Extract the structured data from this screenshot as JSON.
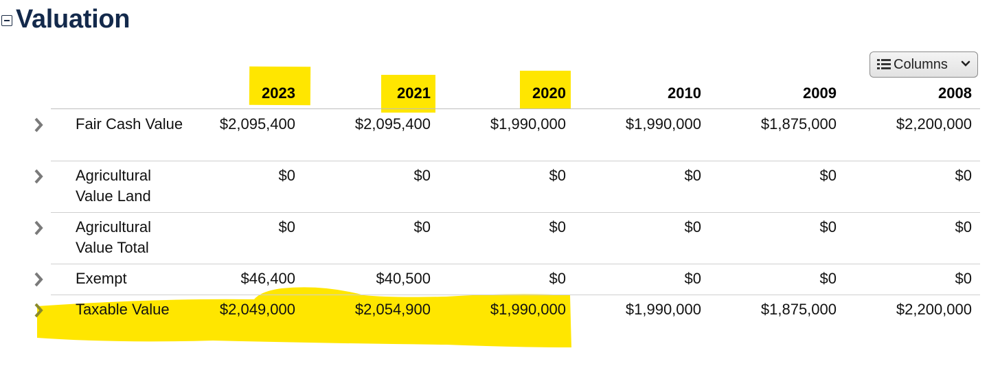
{
  "section": {
    "title": "Valuation"
  },
  "columns_button": {
    "label": "Columns"
  },
  "colors": {
    "highlight": "#ffe600",
    "title": "#13294b"
  },
  "table": {
    "years": [
      "2023",
      "2021",
      "2020",
      "2010",
      "2009",
      "2008"
    ],
    "highlighted_years": [
      "2023",
      "2021",
      "2020"
    ],
    "rows": [
      {
        "label": "Fair Cash Value",
        "values": [
          "$2,095,400",
          "$2,095,400",
          "$1,990,000",
          "$1,990,000",
          "$1,875,000",
          "$2,200,000"
        ]
      },
      {
        "label": "Agricultural Value Land",
        "values": [
          "$0",
          "$0",
          "$0",
          "$0",
          "$0",
          "$0"
        ]
      },
      {
        "label": "Agricultural Value Total",
        "values": [
          "$0",
          "$0",
          "$0",
          "$0",
          "$0",
          "$0"
        ]
      },
      {
        "label": "Exempt",
        "values": [
          "$46,400",
          "$40,500",
          "$0",
          "$0",
          "$0",
          "$0"
        ]
      },
      {
        "label": "Taxable Value",
        "values": [
          "$2,049,000",
          "$2,054,900",
          "$1,990,000",
          "$1,990,000",
          "$1,875,000",
          "$2,200,000"
        ],
        "highlighted": true
      }
    ]
  }
}
